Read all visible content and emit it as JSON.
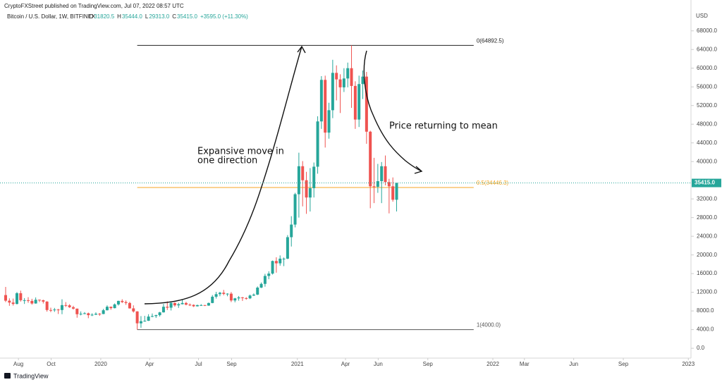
{
  "header": {
    "publisher": "CryptoFXStreet published on TradingView.com, Jul 07, 2022 08:57 UTC",
    "symbol": "Bitcoin / U.S. Dollar, 1W, BITFINEX",
    "ohlc_legend": [
      {
        "key": "O",
        "value": "31820.5"
      },
      {
        "key": "H",
        "value": "35444.0"
      },
      {
        "key": "L",
        "value": "29313.0"
      },
      {
        "key": "C",
        "value": "35415.0"
      }
    ],
    "change": "+3595.0 (+11.30%)"
  },
  "chart_data": {
    "type": "candlestick",
    "y_axis_label": "USD",
    "up_color": "#26a69a",
    "down_color": "#ef5350",
    "xlim": [
      -1.5,
      182.3
    ],
    "xticks": [
      {
        "value": 3.4,
        "label": "Aug"
      },
      {
        "value": 12.1,
        "label": "Oct"
      },
      {
        "value": 25.3,
        "label": "2020"
      },
      {
        "value": 38.3,
        "label": "Apr"
      },
      {
        "value": 51.3,
        "label": "Jul"
      },
      {
        "value": 60.1,
        "label": "Sep"
      },
      {
        "value": 77.6,
        "label": "2021"
      },
      {
        "value": 90.4,
        "label": "Apr"
      },
      {
        "value": 99.1,
        "label": "Jun"
      },
      {
        "value": 112.3,
        "label": "Sep"
      },
      {
        "value": 129.6,
        "label": "2022"
      },
      {
        "value": 138,
        "label": "Mar"
      },
      {
        "value": 151.1,
        "label": "Jun"
      },
      {
        "value": 164.3,
        "label": "Sep"
      },
      {
        "value": 181.6,
        "label": "2023"
      }
    ],
    "ylim": [
      -2100,
      73400
    ],
    "yticks": [
      {
        "value": 0,
        "label": "0.0"
      },
      {
        "value": 4000,
        "label": "4000.0"
      },
      {
        "value": 8000,
        "label": "8000.0"
      },
      {
        "value": 12000,
        "label": "12000.0"
      },
      {
        "value": 16000,
        "label": "16000.0"
      },
      {
        "value": 20000,
        "label": "20000.0"
      },
      {
        "value": 24000,
        "label": "24000.0"
      },
      {
        "value": 28000,
        "label": "28000.0"
      },
      {
        "value": 32000,
        "label": "32000.0"
      },
      {
        "value": 40000,
        "label": "40000.0"
      },
      {
        "value": 44000,
        "label": "44000.0"
      },
      {
        "value": 48000,
        "label": "48000.0"
      },
      {
        "value": 52000,
        "label": "52000.0"
      },
      {
        "value": 56000,
        "label": "56000.0"
      },
      {
        "value": 60000,
        "label": "60000.0"
      },
      {
        "value": 64000,
        "label": "64000.0"
      },
      {
        "value": 68000,
        "label": "68000.0"
      }
    ],
    "last_price": {
      "value": 35415,
      "label": "35415.0",
      "color": "#26a69a"
    },
    "fib_x": [
      35,
      124.5
    ],
    "fib_levels": [
      {
        "label": "0(64892.5)",
        "value": 64892.5,
        "color": "#222222"
      },
      {
        "label": "0.5(34446.3)",
        "value": 34446.3,
        "color": "#f5a623"
      },
      {
        "label": "1(4000.0)",
        "value": 4000,
        "color": "#555555"
      }
    ],
    "annotations": [
      "Expansive move in",
      "one direction",
      "Price returning to mean"
    ],
    "x": [
      0,
      1,
      2,
      3,
      4,
      5,
      6,
      7,
      8,
      9,
      10,
      11,
      12,
      13,
      14,
      15,
      16,
      17,
      18,
      19,
      20,
      21,
      22,
      23,
      24,
      25,
      26,
      27,
      28,
      29,
      30,
      31,
      32,
      33,
      34,
      35,
      36,
      37,
      38,
      39,
      40,
      41,
      42,
      43,
      44,
      45,
      46,
      47,
      48,
      49,
      50,
      51,
      52,
      53,
      54,
      55,
      56,
      57,
      58,
      59,
      60,
      61,
      62,
      63,
      64,
      65,
      66,
      67,
      68,
      69,
      70,
      71,
      72,
      73,
      74,
      75,
      76,
      77,
      78,
      79,
      80,
      81,
      82,
      83,
      84,
      85,
      86,
      87,
      88,
      89,
      90,
      91,
      92,
      93,
      94,
      95,
      96,
      97,
      98,
      99,
      100,
      101,
      102,
      103,
      104
    ],
    "ohlc": [
      [
        11400,
        13150,
        9900,
        10200
      ],
      [
        10200,
        10700,
        9100,
        9800
      ],
      [
        9800,
        10650,
        9150,
        9500
      ],
      [
        9500,
        12050,
        9400,
        11800
      ],
      [
        11800,
        12350,
        10000,
        10300
      ],
      [
        10300,
        10750,
        9500,
        10300
      ],
      [
        10300,
        10950,
        9750,
        10150
      ],
      [
        10150,
        10600,
        9350,
        9600
      ],
      [
        9600,
        10900,
        9550,
        10400
      ],
      [
        10400,
        10450,
        9900,
        10300
      ],
      [
        10300,
        10400,
        9600,
        10000
      ],
      [
        10000,
        10100,
        7850,
        8200
      ],
      [
        8200,
        8700,
        7750,
        8150
      ],
      [
        8150,
        8650,
        7800,
        8300
      ],
      [
        8300,
        8450,
        7350,
        8200
      ],
      [
        8200,
        10500,
        7300,
        9250
      ],
      [
        9250,
        9900,
        8850,
        9200
      ],
      [
        9200,
        9450,
        8650,
        8800
      ],
      [
        8800,
        9100,
        8300,
        8500
      ],
      [
        8500,
        8500,
        6550,
        7300
      ],
      [
        7300,
        7900,
        7050,
        7400
      ],
      [
        7400,
        7750,
        7300,
        7500
      ],
      [
        7500,
        7650,
        6450,
        7100
      ],
      [
        7100,
        7500,
        6900,
        7200
      ],
      [
        7200,
        7700,
        7150,
        7400
      ],
      [
        7400,
        7550,
        6950,
        7350
      ],
      [
        7350,
        8450,
        7300,
        8150
      ],
      [
        8150,
        9200,
        8100,
        8900
      ],
      [
        8900,
        8950,
        8250,
        8600
      ],
      [
        8600,
        9600,
        8550,
        9400
      ],
      [
        9400,
        10200,
        9150,
        10150
      ],
      [
        10150,
        10500,
        9700,
        9900
      ],
      [
        9900,
        10250,
        9300,
        9700
      ],
      [
        9700,
        9950,
        8500,
        8550
      ],
      [
        8550,
        9200,
        7650,
        7900
      ],
      [
        7900,
        7950,
        4000,
        5350
      ],
      [
        5350,
        6900,
        4400,
        5800
      ],
      [
        5800,
        6950,
        5700,
        5900
      ],
      [
        5900,
        7300,
        5850,
        6800
      ],
      [
        6800,
        7450,
        6650,
        6900
      ],
      [
        6900,
        7200,
        6500,
        7100
      ],
      [
        7100,
        7800,
        6800,
        7700
      ],
      [
        7700,
        9500,
        7650,
        8900
      ],
      [
        8900,
        10050,
        8200,
        8700
      ],
      [
        8700,
        9950,
        8100,
        9700
      ],
      [
        9700,
        9850,
        8900,
        9200
      ],
      [
        9200,
        9750,
        8650,
        9450
      ],
      [
        9450,
        10400,
        9400,
        9700
      ],
      [
        9700,
        9950,
        9200,
        9350
      ],
      [
        9350,
        9600,
        9050,
        9300
      ],
      [
        9300,
        9400,
        8850,
        9000
      ],
      [
        9000,
        9350,
        8950,
        9250
      ],
      [
        9250,
        9450,
        9100,
        9250
      ],
      [
        9250,
        9300,
        9050,
        9150
      ],
      [
        9150,
        9800,
        9100,
        9700
      ],
      [
        9700,
        11400,
        9650,
        11050
      ],
      [
        11050,
        12100,
        10650,
        11600
      ],
      [
        11600,
        12100,
        11150,
        11900
      ],
      [
        11900,
        12500,
        11350,
        11650
      ],
      [
        11650,
        11800,
        11150,
        11700
      ],
      [
        11700,
        12050,
        9900,
        10250
      ],
      [
        10250,
        10800,
        9850,
        10700
      ],
      [
        10700,
        11200,
        10200,
        10900
      ],
      [
        10900,
        11000,
        10150,
        10750
      ],
      [
        10750,
        10950,
        10400,
        10700
      ],
      [
        10700,
        11500,
        10550,
        11300
      ],
      [
        11300,
        11750,
        11200,
        11500
      ],
      [
        11500,
        13250,
        11400,
        13000
      ],
      [
        13000,
        14100,
        12900,
        13800
      ],
      [
        13800,
        15950,
        13200,
        15500
      ],
      [
        15500,
        16500,
        14800,
        16000
      ],
      [
        16000,
        18800,
        15800,
        18700
      ],
      [
        18700,
        19500,
        16200,
        18200
      ],
      [
        18200,
        19900,
        17700,
        19200
      ],
      [
        19200,
        19450,
        17600,
        19200
      ],
      [
        19200,
        24250,
        19100,
        23800
      ],
      [
        23800,
        28300,
        21800,
        26500
      ],
      [
        26500,
        33300,
        25900,
        33000
      ],
      [
        33000,
        41900,
        28000,
        39000
      ],
      [
        39000,
        40100,
        30400,
        36000
      ],
      [
        36000,
        37800,
        28800,
        32300
      ],
      [
        32300,
        38600,
        29300,
        34300
      ],
      [
        34300,
        39800,
        32300,
        38900
      ],
      [
        38900,
        49700,
        37400,
        48600
      ],
      [
        48600,
        58300,
        47000,
        57500
      ],
      [
        57500,
        58400,
        43000,
        46200
      ],
      [
        46200,
        52600,
        44900,
        51000
      ],
      [
        51000,
        61800,
        49300,
        59000
      ],
      [
        59000,
        60600,
        53100,
        57600
      ],
      [
        57600,
        58700,
        50400,
        55900
      ],
      [
        55900,
        60000,
        54900,
        57800
      ],
      [
        57800,
        61200,
        55900,
        60000
      ],
      [
        60000,
        64892.5,
        51500,
        56200
      ],
      [
        56200,
        57200,
        47000,
        49000
      ],
      [
        49000,
        58400,
        47400,
        56600
      ],
      [
        56600,
        59500,
        53400,
        58200
      ],
      [
        58200,
        59200,
        43800,
        46400
      ],
      [
        46400,
        46600,
        30000,
        34700
      ],
      [
        34700,
        40800,
        31100,
        34600
      ],
      [
        34600,
        39500,
        33300,
        35800
      ],
      [
        35800,
        39900,
        31100,
        39000
      ],
      [
        39000,
        41300,
        34900,
        35600
      ],
      [
        35600,
        36300,
        28900,
        34700
      ],
      [
        34700,
        36600,
        31400,
        31820.5
      ],
      [
        31820.5,
        35444,
        29313,
        35415
      ]
    ]
  }
}
